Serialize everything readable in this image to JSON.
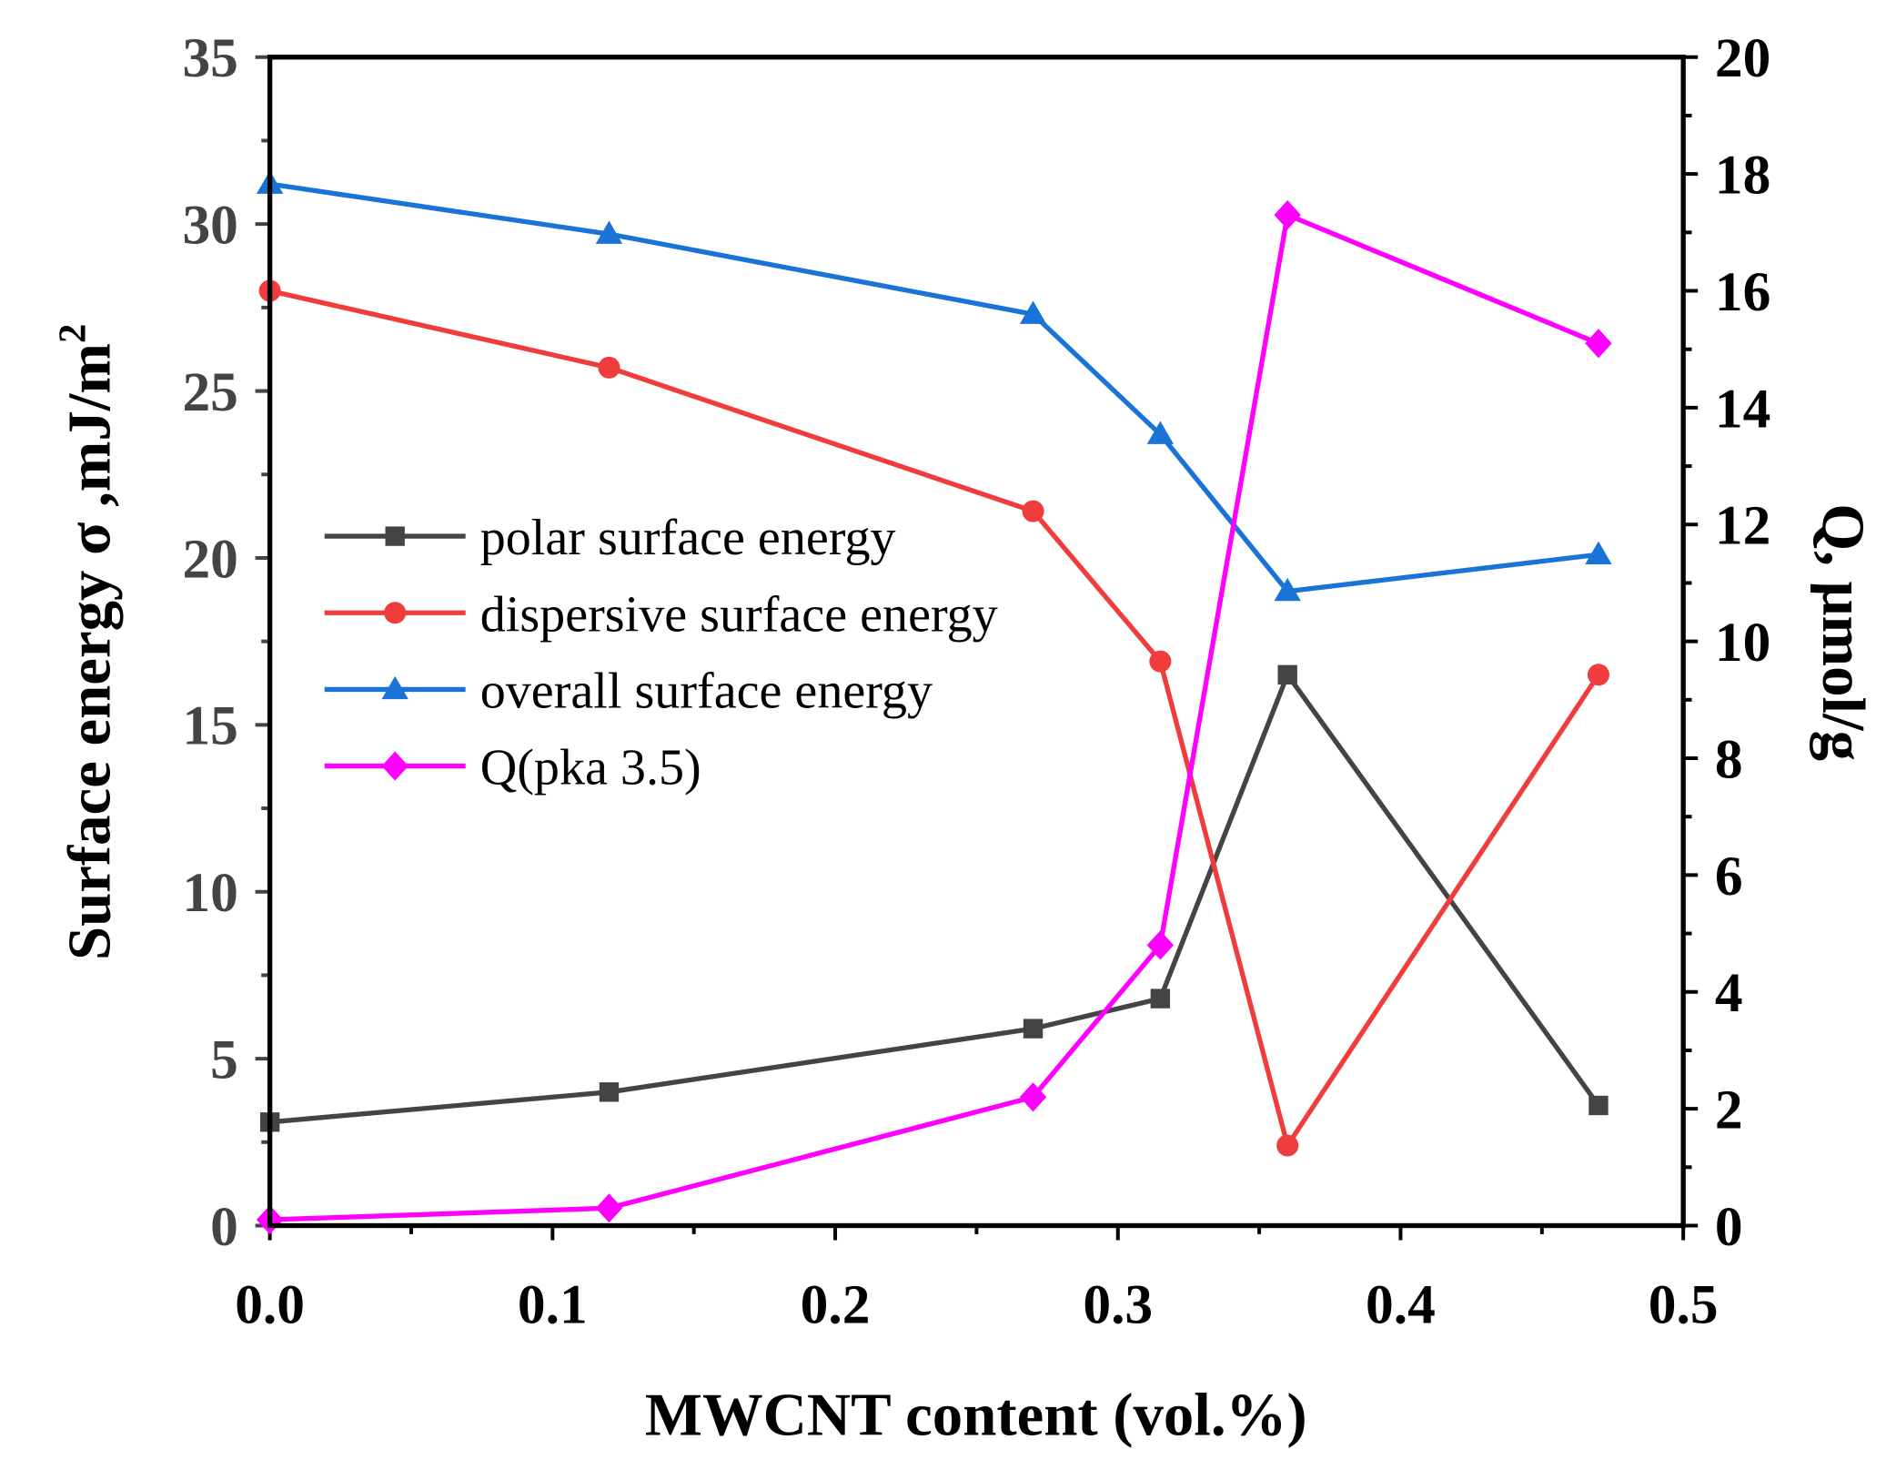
{
  "chart_data": {
    "type": "line",
    "xlabel": "MWCNT content (vol.%)",
    "ylabel": "Surface energy σ ,mJ/m",
    "ylabel_sup": "2",
    "y2label": "Q, μmol/g",
    "xlim": [
      0,
      0.5
    ],
    "ylim": [
      0,
      35
    ],
    "y2lim": [
      0,
      20
    ],
    "xticks": [
      "0.0",
      "0.1",
      "0.2",
      "0.3",
      "0.4",
      "0.5"
    ],
    "yticks": [
      "0",
      "5",
      "10",
      "15",
      "20",
      "25",
      "30",
      "35"
    ],
    "y2ticks": [
      "0",
      "2",
      "4",
      "6",
      "8",
      "10",
      "12",
      "14",
      "16",
      "18",
      "20"
    ],
    "legend_position": "center-left",
    "x": [
      0.0,
      0.12,
      0.27,
      0.315,
      0.36,
      0.47
    ],
    "series": [
      {
        "name": "polar surface energy",
        "axis": "left",
        "color": "#444444",
        "marker": "square",
        "values": [
          3.1,
          4.0,
          5.9,
          6.8,
          16.5,
          3.6
        ]
      },
      {
        "name": "dispersive surface energy",
        "axis": "left",
        "color": "#f03c3c",
        "marker": "circle",
        "values": [
          28.0,
          25.7,
          21.4,
          16.9,
          2.4,
          16.5
        ]
      },
      {
        "name": "overall surface energy",
        "axis": "left",
        "color": "#1a73d6",
        "marker": "triangle",
        "values": [
          31.2,
          29.7,
          27.3,
          23.7,
          19.0,
          20.1
        ]
      },
      {
        "name": "Q(pka 3.5)",
        "axis": "right",
        "color": "#ff00ff",
        "marker": "diamond",
        "values": [
          0.1,
          0.3,
          2.2,
          4.8,
          17.3,
          15.1
        ]
      }
    ]
  }
}
